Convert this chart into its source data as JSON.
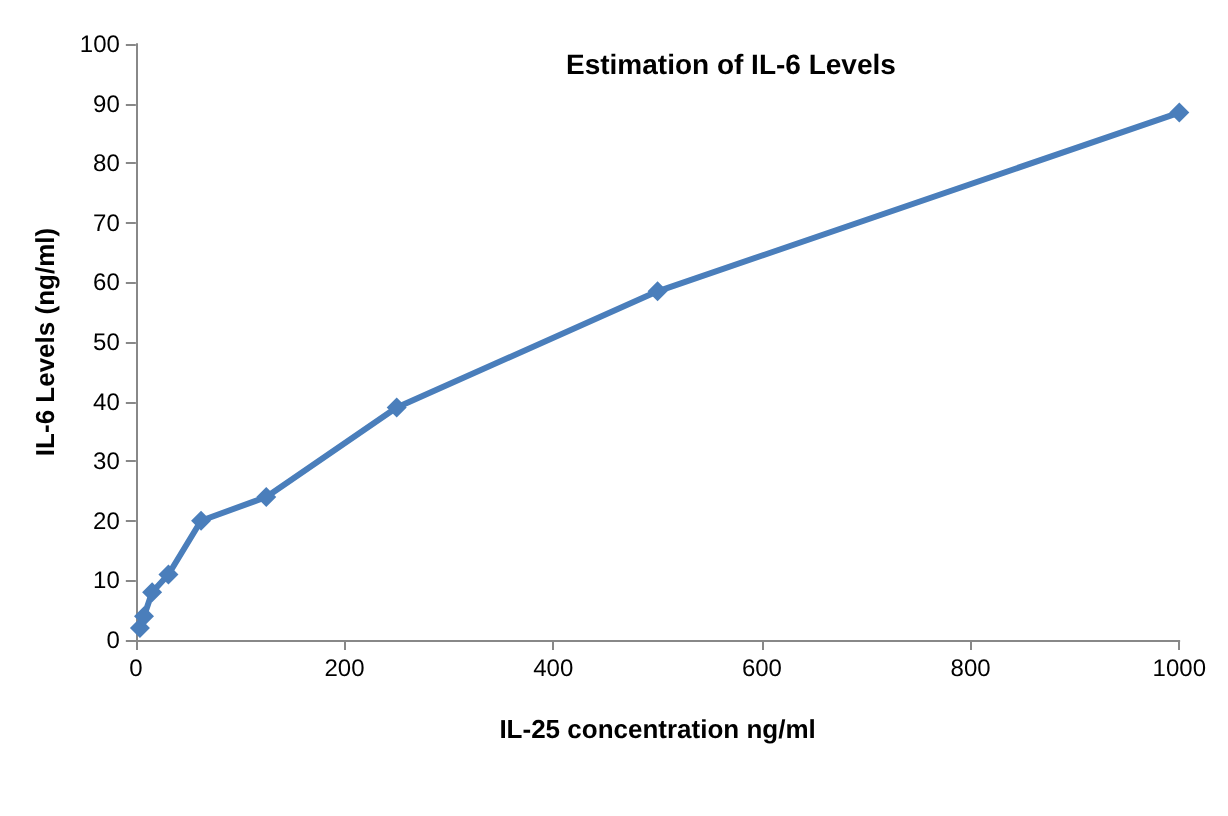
{
  "chart_data": {
    "type": "line",
    "title": "Estimation of IL-6 Levels",
    "xlabel": "IL-25 concentration ng/ml",
    "ylabel": "IL-6 Levels (ng/ml)",
    "x": [
      3.9,
      7.8,
      15.6,
      31.25,
      62.5,
      125,
      250,
      500,
      1000
    ],
    "series": [
      {
        "color": "#4a7ebb",
        "values": [
          2,
          4,
          8,
          11,
          20,
          24,
          39,
          58.5,
          88.5
        ]
      }
    ],
    "xlim": [
      0,
      1000
    ],
    "xticks": [
      0,
      200,
      400,
      600,
      800,
      1000
    ],
    "ylim": [
      0,
      100
    ],
    "yticks": [
      0,
      10,
      20,
      30,
      40,
      50,
      60,
      70,
      80,
      90,
      100
    ],
    "grid": false,
    "marker": "diamond",
    "line_style": "solid"
  }
}
